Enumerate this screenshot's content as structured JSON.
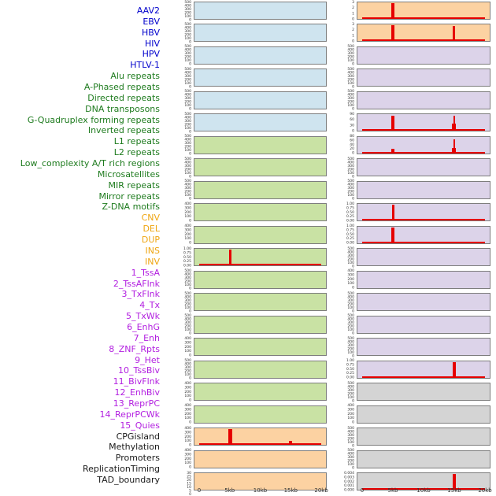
{
  "figure_title": "",
  "chart_data": {
    "type": "area",
    "description": "Small-multiple genomic feature signal tracks over a 0-20kb window, two plot columns read top-to-bottom (left column = first 22 labels, right column = last 22 labels)",
    "x_axis": {
      "ticks": [
        "0",
        "5kb",
        "10kb",
        "15kb",
        "20kb"
      ],
      "range_kb": [
        0,
        20
      ]
    },
    "grid": false,
    "legend": "none",
    "spike_color": "#e60000",
    "category_styles": {
      "virus": {
        "label_color": "#0000cc",
        "track_bg": "#cfe4ef"
      },
      "repeat": {
        "label_color": "#1e7b1e",
        "track_bg": "#c9e2a4"
      },
      "structural_variant": {
        "label_color": "#efa511",
        "track_bg": "#fcd2a2"
      },
      "chromatin_state": {
        "label_color": "#b21fe0",
        "track_bg": "#dcd3e9"
      },
      "other": {
        "label_color": "#1a1a1a",
        "track_bg": "#d4d4d4"
      }
    },
    "columns": [
      {
        "tracks": [
          {
            "label": "AAV2",
            "category": "virus",
            "yticks": [
              "500",
              "400",
              "300",
              "200",
              "100",
              "0"
            ],
            "spikes": [],
            "baseline": false
          },
          {
            "label": "EBV",
            "category": "virus",
            "yticks": [
              "500",
              "400",
              "300",
              "200",
              "100",
              "0"
            ],
            "spikes": [],
            "baseline": false
          },
          {
            "label": "HBV",
            "category": "virus",
            "yticks": [
              "500",
              "400",
              "300",
              "200",
              "100",
              "0"
            ],
            "spikes": [],
            "baseline": false
          },
          {
            "label": "HIV",
            "category": "virus",
            "yticks": [
              "500",
              "400",
              "300",
              "200",
              "100",
              "0"
            ],
            "spikes": [],
            "baseline": false
          },
          {
            "label": "HPV",
            "category": "virus",
            "yticks": [
              "500",
              "400",
              "300",
              "200",
              "100",
              "0"
            ],
            "spikes": [],
            "baseline": false
          },
          {
            "label": "HTLV-1",
            "category": "virus",
            "yticks": [
              "500",
              "400",
              "300",
              "200",
              "100",
              "0"
            ],
            "spikes": [],
            "baseline": false
          },
          {
            "label": "Alu repeats",
            "category": "repeat",
            "yticks": [
              "500",
              "400",
              "300",
              "200",
              "100",
              "0"
            ],
            "spikes": [],
            "baseline": false
          },
          {
            "label": "A-Phased repeats",
            "category": "repeat",
            "yticks": [
              "500",
              "400",
              "300",
              "200",
              "100",
              "0"
            ],
            "spikes": [],
            "baseline": false
          },
          {
            "label": "Directed repeats",
            "category": "repeat",
            "yticks": [
              "500",
              "400",
              "300",
              "200",
              "100",
              "0"
            ],
            "spikes": [],
            "baseline": false
          },
          {
            "label": "DNA transposons",
            "category": "repeat",
            "yticks": [
              "400",
              "300",
              "200",
              "100",
              "0"
            ],
            "spikes": [],
            "baseline": false
          },
          {
            "label": "G-Quadruplex forming repeats",
            "category": "repeat",
            "yticks": [
              "400",
              "300",
              "200",
              "100",
              "0"
            ],
            "spikes": [],
            "baseline": false
          },
          {
            "label": "Inverted repeats",
            "category": "repeat",
            "yticks": [
              "1.00",
              "0.75",
              "0.50",
              "0.25",
              "0.00"
            ],
            "spikes": [
              {
                "kb": 5,
                "h": 1,
                "w": 3
              }
            ],
            "baseline": true
          },
          {
            "label": "L1 repeats",
            "category": "repeat",
            "yticks": [
              "500",
              "400",
              "300",
              "200",
              "100",
              "0"
            ],
            "spikes": [],
            "baseline": false
          },
          {
            "label": "L2 repeats",
            "category": "repeat",
            "yticks": [
              "500",
              "400",
              "300",
              "200",
              "100",
              "0"
            ],
            "spikes": [],
            "baseline": false
          },
          {
            "label": "Low_complexity A/T rich regions",
            "category": "repeat",
            "yticks": [
              "500",
              "400",
              "300",
              "200",
              "100",
              "0"
            ],
            "spikes": [],
            "baseline": false
          },
          {
            "label": "Microsatellites",
            "category": "repeat",
            "yticks": [
              "400",
              "300",
              "200",
              "100",
              "0"
            ],
            "spikes": [],
            "baseline": false
          },
          {
            "label": "MIR repeats",
            "category": "repeat",
            "yticks": [
              "500",
              "400",
              "300",
              "200",
              "100",
              "0"
            ],
            "spikes": [],
            "baseline": false
          },
          {
            "label": "Mirror repeats",
            "category": "repeat",
            "yticks": [
              "400",
              "300",
              "200",
              "100",
              "0"
            ],
            "spikes": [],
            "baseline": false
          },
          {
            "label": "Z-DNA motifs",
            "category": "repeat",
            "yticks": [
              "400",
              "300",
              "200",
              "100",
              "0"
            ],
            "spikes": [],
            "baseline": false
          },
          {
            "label": "CNV",
            "category": "structural_variant",
            "yticks": [
              "400",
              "300",
              "200",
              "100",
              "0"
            ],
            "spikes": [
              {
                "kb": 5,
                "h": 1,
                "w": 5
              },
              {
                "kb": 15,
                "h": 0.27,
                "w": 4
              }
            ],
            "baseline": true
          },
          {
            "label": "DEL",
            "category": "structural_variant",
            "yticks": [
              "400",
              "300",
              "200",
              "100",
              "0"
            ],
            "spikes": [],
            "baseline": false
          },
          {
            "label": "DUP",
            "category": "structural_variant",
            "yticks": [
              "30",
              "25",
              "20",
              "15",
              "10",
              "5",
              "0"
            ],
            "spikes": [],
            "baseline": false
          }
        ]
      },
      {
        "tracks": [
          {
            "label": "INS",
            "category": "structural_variant",
            "yticks": [
              "3",
              "2",
              "1",
              "0"
            ],
            "spikes": [
              {
                "kb": 5,
                "h": 1,
                "w": 4
              }
            ],
            "baseline": true
          },
          {
            "label": "INV",
            "category": "structural_variant",
            "yticks": [
              "3",
              "2",
              "1",
              "0"
            ],
            "spikes": [
              {
                "kb": 5,
                "h": 1,
                "w": 4
              },
              {
                "kb": 15,
                "h": 0.95,
                "w": 3
              }
            ],
            "baseline": true
          },
          {
            "label": "1_TssA",
            "category": "chromatin_state",
            "yticks": [
              "500",
              "400",
              "300",
              "200",
              "100",
              "0"
            ],
            "spikes": [],
            "baseline": false
          },
          {
            "label": "2_TssAFlnk",
            "category": "chromatin_state",
            "yticks": [
              "500",
              "400",
              "300",
              "200",
              "100",
              "0"
            ],
            "spikes": [],
            "baseline": false
          },
          {
            "label": "3_TxFlnk",
            "category": "chromatin_state",
            "yticks": [
              "500",
              "400",
              "300",
              "200",
              "100",
              "0"
            ],
            "spikes": [],
            "baseline": false
          },
          {
            "label": "4_Tx",
            "category": "chromatin_state",
            "yticks": [
              "90",
              "60",
              "30",
              "0"
            ],
            "spikes": [
              {
                "kb": 5,
                "h": 0.97,
                "w": 4
              },
              {
                "kb": 15,
                "h": 0.95,
                "w": 2
              },
              {
                "kb": 15,
                "h": 0.45,
                "w": 5
              }
            ],
            "baseline": true
          },
          {
            "label": "5_TxWk",
            "category": "chromatin_state",
            "yticks": [
              "80",
              "60",
              "40",
              "20",
              "0"
            ],
            "spikes": [
              {
                "kb": 5,
                "h": 0.3,
                "w": 4
              },
              {
                "kb": 15,
                "h": 0.9,
                "w": 2
              },
              {
                "kb": 15,
                "h": 0.35,
                "w": 5
              }
            ],
            "baseline": true
          },
          {
            "label": "6_EnhG",
            "category": "chromatin_state",
            "yticks": [
              "500",
              "400",
              "300",
              "200",
              "100",
              "0"
            ],
            "spikes": [],
            "baseline": false
          },
          {
            "label": "7_Enh",
            "category": "chromatin_state",
            "yticks": [
              "500",
              "400",
              "300",
              "200",
              "100",
              "0"
            ],
            "spikes": [],
            "baseline": false
          },
          {
            "label": "8_ZNF_Rpts",
            "category": "chromatin_state",
            "yticks": [
              "1.00",
              "0.75",
              "0.50",
              "0.25",
              "0.00"
            ],
            "spikes": [
              {
                "kb": 5,
                "h": 1,
                "w": 3
              }
            ],
            "baseline": true
          },
          {
            "label": "9_Het",
            "category": "chromatin_state",
            "yticks": [
              "1.00",
              "0.75",
              "0.50",
              "0.25",
              "0.00"
            ],
            "spikes": [
              {
                "kb": 5,
                "h": 1,
                "w": 4
              }
            ],
            "baseline": true
          },
          {
            "label": "10_TssBiv",
            "category": "chromatin_state",
            "yticks": [
              "500",
              "400",
              "300",
              "200",
              "100",
              "0"
            ],
            "spikes": [],
            "baseline": false
          },
          {
            "label": "11_BivFlnk",
            "category": "chromatin_state",
            "yticks": [
              "400",
              "300",
              "200",
              "100",
              "0"
            ],
            "spikes": [],
            "baseline": false
          },
          {
            "label": "12_EnhBiv",
            "category": "chromatin_state",
            "yticks": [
              "500",
              "400",
              "300",
              "200",
              "100",
              "0"
            ],
            "spikes": [],
            "baseline": false
          },
          {
            "label": "13_ReprPC",
            "category": "chromatin_state",
            "yticks": [
              "500",
              "400",
              "300",
              "200",
              "100",
              "0"
            ],
            "spikes": [],
            "baseline": false
          },
          {
            "label": "14_ReprPCWk",
            "category": "chromatin_state",
            "yticks": [
              "500",
              "400",
              "300",
              "200",
              "100",
              "0"
            ],
            "spikes": [],
            "baseline": false
          },
          {
            "label": "15_Quies",
            "category": "chromatin_state",
            "yticks": [
              "1.00",
              "0.75",
              "0.50",
              "0.25",
              "0.00"
            ],
            "spikes": [
              {
                "kb": 15,
                "h": 1,
                "w": 4
              }
            ],
            "baseline": true
          },
          {
            "label": "CPGisland",
            "category": "other",
            "yticks": [
              "500",
              "400",
              "300",
              "200",
              "100",
              "0"
            ],
            "spikes": [],
            "baseline": false
          },
          {
            "label": "Methylation",
            "category": "other",
            "yticks": [
              "400",
              "300",
              "200",
              "100",
              "0"
            ],
            "spikes": [],
            "baseline": false
          },
          {
            "label": "Promoters",
            "category": "other",
            "yticks": [
              "500",
              "400",
              "300",
              "200",
              "100",
              "0"
            ],
            "spikes": [],
            "baseline": false
          },
          {
            "label": "ReplicationTiming",
            "category": "other",
            "yticks": [
              "500",
              "400",
              "300",
              "200",
              "100",
              "0"
            ],
            "spikes": [],
            "baseline": false
          },
          {
            "label": "TAD_boundary",
            "category": "other",
            "yticks": [
              "0.004",
              "0.003",
              "0.002",
              "0.001",
              "0.000"
            ],
            "spikes": [
              {
                "kb": 15,
                "h": 1,
                "w": 4
              }
            ],
            "baseline": true
          }
        ]
      }
    ]
  }
}
